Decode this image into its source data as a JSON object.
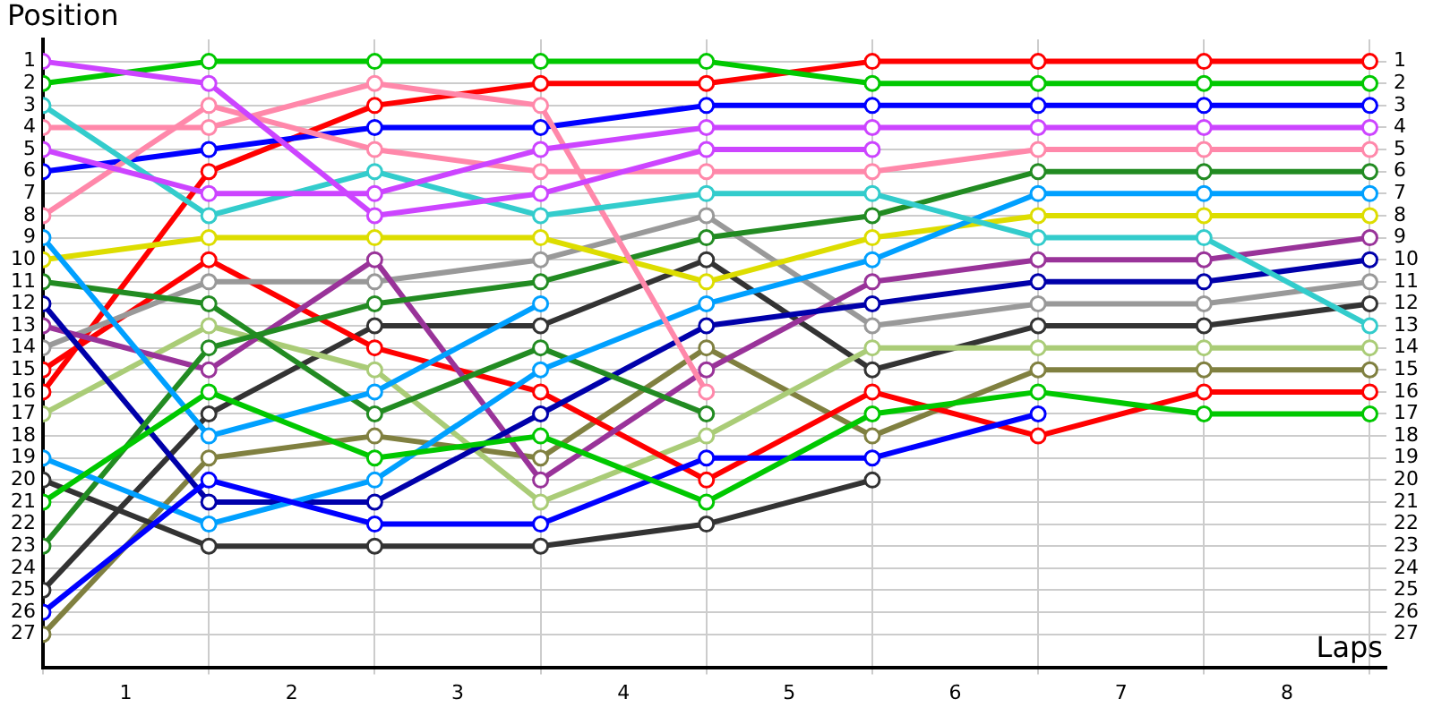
{
  "chart_data": {
    "type": "line",
    "xlabel": "Laps",
    "ylabel": "Position",
    "x": [
      0,
      1,
      2,
      3,
      4,
      5,
      6,
      7,
      8
    ],
    "xlim": [
      0,
      8.1
    ],
    "xticks": [
      {
        "value": 0,
        "label": null
      },
      {
        "value": 0.5,
        "label": "1"
      },
      {
        "value": 1,
        "label": null
      },
      {
        "value": 1.5,
        "label": "2"
      },
      {
        "value": 2,
        "label": null
      },
      {
        "value": 2.5,
        "label": "3"
      },
      {
        "value": 3,
        "label": null
      },
      {
        "value": 3.5,
        "label": "4"
      },
      {
        "value": 4,
        "label": null
      },
      {
        "value": 4.5,
        "label": "5"
      },
      {
        "value": 5,
        "label": null
      },
      {
        "value": 5.5,
        "label": "6"
      },
      {
        "value": 6,
        "label": null
      },
      {
        "value": 6.5,
        "label": "7"
      },
      {
        "value": 7,
        "label": null
      },
      {
        "value": 7.5,
        "label": "8"
      },
      {
        "value": 8,
        "label": null
      }
    ],
    "ylim": [
      28.5,
      0
    ],
    "yticks": [
      1,
      2,
      3,
      4,
      5,
      6,
      7,
      8,
      9,
      10,
      11,
      12,
      13,
      14,
      15,
      16,
      17,
      18,
      19,
      20,
      21,
      22,
      23,
      24,
      25,
      26,
      27
    ],
    "y2lim": [
      28.5,
      0
    ],
    "y2ticks": [
      1,
      2,
      3,
      4,
      5,
      6,
      7,
      8,
      9,
      10,
      11,
      12,
      13,
      14,
      15,
      16,
      17,
      18,
      19,
      20,
      21,
      22,
      23,
      24,
      25,
      26,
      27
    ],
    "grid": true,
    "legend": false,
    "marker": "circle",
    "line_style": "solid",
    "series": [
      {
        "color": "#cc44ff",
        "values": [
          1,
          2,
          8,
          7,
          5,
          5,
          null,
          null,
          null
        ]
      },
      {
        "color": "#cc44ff",
        "values": [
          5,
          7,
          7,
          5,
          4,
          4,
          4,
          4,
          4
        ]
      },
      {
        "color": "#00c800",
        "values": [
          2,
          1,
          1,
          1,
          1,
          2,
          2,
          2,
          2
        ]
      },
      {
        "color": "#00c800",
        "values": [
          21,
          16,
          19,
          18,
          21,
          17,
          16,
          17,
          17
        ]
      },
      {
        "color": "#33cccc",
        "values": [
          3,
          8,
          6,
          8,
          7,
          7,
          9,
          9,
          13
        ]
      },
      {
        "color": "#ff88aa",
        "values": [
          4,
          4,
          2,
          3,
          16,
          null,
          null,
          null,
          null
        ]
      },
      {
        "color": "#ff88aa",
        "values": [
          8,
          3,
          5,
          6,
          6,
          6,
          5,
          5,
          5
        ]
      },
      {
        "color": "#0000ff",
        "values": [
          6,
          5,
          4,
          4,
          3,
          3,
          3,
          3,
          3
        ]
      },
      {
        "color": "#0000ff",
        "values": [
          26,
          20,
          22,
          22,
          19,
          19,
          17,
          null,
          null
        ]
      },
      {
        "color": "#00a0ff",
        "values": [
          9,
          18,
          16,
          12,
          null,
          null,
          null,
          null,
          null
        ]
      },
      {
        "color": "#00a0ff",
        "values": [
          19,
          22,
          20,
          15,
          12,
          10,
          7,
          7,
          7
        ]
      },
      {
        "color": "#dddd00",
        "values": [
          10,
          9,
          9,
          9,
          11,
          9,
          8,
          8,
          8
        ]
      },
      {
        "color": "#228b22",
        "values": [
          11,
          12,
          17,
          14,
          17,
          null,
          null,
          null,
          null
        ]
      },
      {
        "color": "#228b22",
        "values": [
          23,
          14,
          12,
          11,
          9,
          8,
          6,
          6,
          6
        ]
      },
      {
        "color": "#0000aa",
        "values": [
          12,
          21,
          21,
          17,
          13,
          12,
          11,
          11,
          10
        ]
      },
      {
        "color": "#993399",
        "values": [
          13,
          15,
          10,
          20,
          15,
          11,
          10,
          10,
          9
        ]
      },
      {
        "color": "#999999",
        "values": [
          14,
          11,
          11,
          10,
          8,
          13,
          12,
          12,
          11
        ]
      },
      {
        "color": "#ff0000",
        "values": [
          15,
          10,
          14,
          16,
          20,
          16,
          18,
          16,
          16
        ]
      },
      {
        "color": "#ff0000",
        "values": [
          16,
          6,
          3,
          2,
          2,
          1,
          1,
          1,
          1
        ]
      },
      {
        "color": "#aacc77",
        "values": [
          17,
          13,
          15,
          21,
          18,
          14,
          14,
          14,
          14
        ]
      },
      {
        "color": "#333333",
        "values": [
          20,
          23,
          23,
          23,
          22,
          20,
          null,
          null,
          null
        ]
      },
      {
        "color": "#333333",
        "values": [
          25,
          17,
          13,
          13,
          10,
          15,
          13,
          13,
          12
        ]
      },
      {
        "color": "#808040",
        "values": [
          27,
          19,
          18,
          19,
          14,
          18,
          15,
          15,
          15
        ]
      }
    ]
  }
}
